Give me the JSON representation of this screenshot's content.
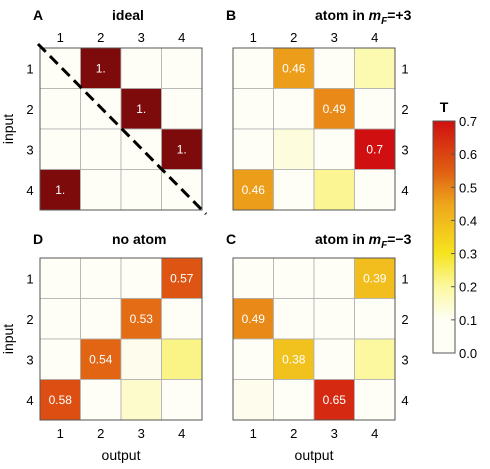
{
  "chart_data": [
    {
      "type": "heatmap",
      "panel": "A",
      "title": "ideal",
      "title_parts": [
        {
          "text": "ideal",
          "italic": false
        }
      ],
      "xlabel": "",
      "ylabel": "input",
      "x_ticks": [
        "1",
        "2",
        "3",
        "4"
      ],
      "y_ticks": [
        "1",
        "2",
        "3",
        "4"
      ],
      "x_ticks_position": "top",
      "y_ticks_position": "left",
      "values": [
        [
          0.0,
          1.0,
          0.0,
          0.0
        ],
        [
          0.0,
          0.0,
          1.0,
          0.0
        ],
        [
          0.0,
          0.0,
          0.0,
          1.0
        ],
        [
          1.0,
          0.0,
          0.0,
          0.0
        ]
      ],
      "labels": [
        [
          "",
          "1.",
          "",
          ""
        ],
        [
          "",
          "",
          "1.",
          ""
        ],
        [
          "",
          "",
          "",
          "1."
        ],
        [
          "1.",
          "",
          "",
          ""
        ]
      ],
      "annotation": "dashed diagonal line from top-left to bottom-right"
    },
    {
      "type": "heatmap",
      "panel": "B",
      "title": "atom in mF=+3",
      "title_parts": [
        {
          "text": "atom in ",
          "italic": false
        },
        {
          "text": "m",
          "italic": true
        },
        {
          "text": "F",
          "italic": true,
          "sub": true
        },
        {
          "text": "=+3",
          "italic": false
        }
      ],
      "xlabel": "",
      "ylabel": "",
      "x_ticks": [
        "1",
        "2",
        "3",
        "4"
      ],
      "y_ticks": [
        "1",
        "2",
        "3",
        "4"
      ],
      "x_ticks_position": "top",
      "y_ticks_position": "right",
      "values": [
        [
          0.05,
          0.46,
          0.03,
          0.18
        ],
        [
          0.09,
          0.06,
          0.49,
          0.05
        ],
        [
          0.03,
          0.13,
          0.09,
          0.7
        ],
        [
          0.46,
          0.06,
          0.21,
          0.04
        ]
      ],
      "labels": [
        [
          "",
          "0.46",
          "",
          ""
        ],
        [
          "",
          "",
          "0.49",
          ""
        ],
        [
          "",
          "",
          "",
          "0.7"
        ],
        [
          "0.46",
          "",
          "",
          ""
        ]
      ]
    },
    {
      "type": "heatmap",
      "panel": "D",
      "title": "no atom",
      "title_parts": [
        {
          "text": "no atom",
          "italic": false
        }
      ],
      "xlabel": "output",
      "ylabel": "input",
      "x_ticks": [
        "1",
        "2",
        "3",
        "4"
      ],
      "y_ticks": [
        "1",
        "2",
        "3",
        "4"
      ],
      "x_ticks_position": "bottom",
      "y_ticks_position": "left",
      "values": [
        [
          0.02,
          0.03,
          0.04,
          0.57
        ],
        [
          0.03,
          0.05,
          0.53,
          0.05
        ],
        [
          0.02,
          0.54,
          0.11,
          0.22
        ],
        [
          0.58,
          0.03,
          0.15,
          0.05
        ]
      ],
      "labels": [
        [
          "",
          "",
          "",
          "0.57"
        ],
        [
          "",
          "",
          "0.53",
          ""
        ],
        [
          "",
          "0.54",
          "",
          ""
        ],
        [
          "0.58",
          "",
          "",
          ""
        ]
      ]
    },
    {
      "type": "heatmap",
      "panel": "C",
      "title": "atom in mF=−3",
      "title_parts": [
        {
          "text": "atom in ",
          "italic": false
        },
        {
          "text": "m",
          "italic": true
        },
        {
          "text": "F",
          "italic": true,
          "sub": true
        },
        {
          "text": "=−3",
          "italic": false
        }
      ],
      "xlabel": "output",
      "ylabel": "",
      "x_ticks": [
        "1",
        "2",
        "3",
        "4"
      ],
      "y_ticks": [
        "1",
        "2",
        "3",
        "4"
      ],
      "x_ticks_position": "bottom",
      "y_ticks_position": "right",
      "values": [
        [
          0.07,
          0.09,
          0.06,
          0.39
        ],
        [
          0.49,
          0.05,
          0.07,
          0.04
        ],
        [
          0.07,
          0.38,
          0.09,
          0.2
        ],
        [
          0.11,
          0.03,
          0.65,
          0.05
        ]
      ],
      "labels": [
        [
          "",
          "",
          "",
          "0.39"
        ],
        [
          "0.49",
          "",
          "",
          ""
        ],
        [
          "",
          "0.38",
          "",
          ""
        ],
        [
          "",
          "",
          "0.65",
          ""
        ]
      ]
    }
  ],
  "colorbar": {
    "title": "T",
    "min": 0.0,
    "max": 0.7,
    "ticks": [
      "0.0",
      "0.1",
      "0.2",
      "0.3",
      "0.4",
      "0.5",
      "0.6",
      "0.7"
    ],
    "scale_note": "panel A values of 1.0 are drawn in dark red beyond the colorbar maximum"
  },
  "colors": {
    "low": "#fefef6",
    "mid_low": "#fbf8a0",
    "mid": "#f6e41e",
    "mid_high": "#eda51c",
    "high": "#e05e12",
    "top": "#d01010",
    "over": "#7e0b0b",
    "grid": "#b0b0b0"
  }
}
